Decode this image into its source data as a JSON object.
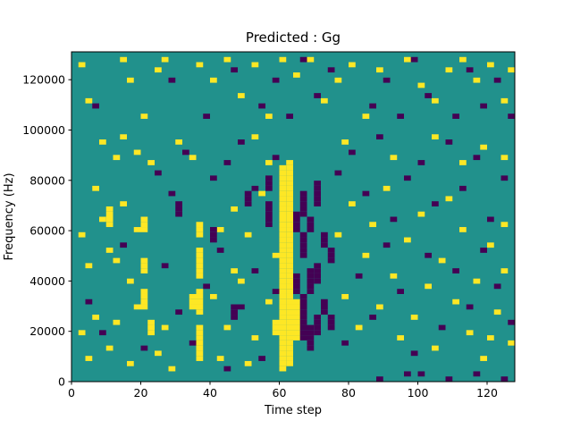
{
  "figure": {
    "title": "Predicted : Gg"
  },
  "chart_data": {
    "type": "heatmap",
    "title": "Predicted : Gg",
    "xlabel": "Time step",
    "ylabel": "Frequency (Hz)",
    "xlim": [
      0,
      128
    ],
    "ylim": [
      0,
      131072
    ],
    "xticks": [
      0,
      20,
      40,
      60,
      80,
      100,
      120
    ],
    "yticks": [
      0,
      20000,
      40000,
      60000,
      80000,
      100000,
      120000
    ],
    "cell_size": {
      "time": 2,
      "freq": 2048
    },
    "colors": {
      "background": "#21918c",
      "yellow": "#fde725",
      "purple": "#440154",
      "frame": "#000000"
    },
    "legend": "none",
    "grid": false,
    "yellow_runs": [
      [
        60,
        4096,
        83968
      ],
      [
        62,
        6144,
        86016
      ],
      [
        64,
        16384,
        30720
      ],
      [
        58,
        18432,
        22528
      ],
      [
        36,
        8192,
        20480
      ],
      [
        36,
        26624,
        34816
      ],
      [
        36,
        40960,
        51200
      ],
      [
        36,
        57344,
        61440
      ],
      [
        34,
        28672,
        32768
      ],
      [
        20,
        28672,
        34816
      ],
      [
        20,
        43008,
        47104
      ],
      [
        20,
        59392,
        63488
      ],
      [
        22,
        18432,
        22528
      ],
      [
        10,
        61440,
        67584
      ]
    ],
    "yellow_cells": [
      [
        2,
        124928
      ],
      [
        4,
        110592
      ],
      [
        14,
        126976
      ],
      [
        16,
        118784
      ],
      [
        20,
        104448
      ],
      [
        24,
        122880
      ],
      [
        26,
        126976
      ],
      [
        36,
        124928
      ],
      [
        40,
        118784
      ],
      [
        44,
        126976
      ],
      [
        48,
        112640
      ],
      [
        52,
        124928
      ],
      [
        56,
        104448
      ],
      [
        60,
        126976
      ],
      [
        64,
        120832
      ],
      [
        68,
        126976
      ],
      [
        72,
        110592
      ],
      [
        76,
        118784
      ],
      [
        80,
        124928
      ],
      [
        84,
        104448
      ],
      [
        88,
        122880
      ],
      [
        96,
        126976
      ],
      [
        100,
        116736
      ],
      [
        104,
        110592
      ],
      [
        108,
        122880
      ],
      [
        112,
        126976
      ],
      [
        116,
        118784
      ],
      [
        120,
        124928
      ],
      [
        124,
        110592
      ],
      [
        126,
        122880
      ],
      [
        8,
        94208
      ],
      [
        12,
        88064
      ],
      [
        14,
        96256
      ],
      [
        18,
        90112
      ],
      [
        22,
        86016
      ],
      [
        30,
        94208
      ],
      [
        34,
        88064
      ],
      [
        52,
        96256
      ],
      [
        56,
        86016
      ],
      [
        78,
        94208
      ],
      [
        92,
        88064
      ],
      [
        104,
        96256
      ],
      [
        112,
        86016
      ],
      [
        118,
        92160
      ],
      [
        124,
        88064
      ],
      [
        2,
        18432
      ],
      [
        4,
        8192
      ],
      [
        6,
        24576
      ],
      [
        10,
        12288
      ],
      [
        12,
        22528
      ],
      [
        16,
        6144
      ],
      [
        18,
        28672
      ],
      [
        24,
        10240
      ],
      [
        26,
        20480
      ],
      [
        28,
        4096
      ],
      [
        2,
        57344
      ],
      [
        4,
        45056
      ],
      [
        8,
        63488
      ],
      [
        10,
        51200
      ],
      [
        14,
        69632
      ],
      [
        16,
        38912
      ],
      [
        18,
        59392
      ],
      [
        6,
        75776
      ],
      [
        12,
        47104
      ],
      [
        40,
        32768
      ],
      [
        42,
        59392
      ],
      [
        44,
        20480
      ],
      [
        46,
        67584
      ],
      [
        48,
        38912
      ],
      [
        50,
        57344
      ],
      [
        52,
        16384
      ],
      [
        54,
        73728
      ],
      [
        56,
        30720
      ],
      [
        58,
        49152
      ],
      [
        42,
        8192
      ],
      [
        50,
        6144
      ],
      [
        46,
        43008
      ],
      [
        76,
        57344
      ],
      [
        78,
        32768
      ],
      [
        80,
        69632
      ],
      [
        82,
        20480
      ],
      [
        84,
        49152
      ],
      [
        86,
        61440
      ],
      [
        88,
        28672
      ],
      [
        90,
        75776
      ],
      [
        92,
        40960
      ],
      [
        94,
        16384
      ],
      [
        96,
        55296
      ],
      [
        98,
        24576
      ],
      [
        100,
        65536
      ],
      [
        102,
        36864
      ],
      [
        104,
        12288
      ],
      [
        106,
        47104
      ],
      [
        108,
        71680
      ],
      [
        110,
        30720
      ],
      [
        112,
        59392
      ],
      [
        114,
        18432
      ],
      [
        116,
        38912
      ],
      [
        118,
        8192
      ],
      [
        120,
        53248
      ],
      [
        122,
        26624
      ],
      [
        124,
        43008
      ],
      [
        126,
        14336
      ],
      [
        120,
        16384
      ],
      [
        124,
        61440
      ]
    ],
    "purple_runs": [
      [
        66,
        16384,
        32768
      ],
      [
        66,
        49152,
        57344
      ],
      [
        66,
        65536,
        73728
      ],
      [
        68,
        12288,
        20480
      ],
      [
        68,
        34816,
        43008
      ],
      [
        68,
        59392,
        63488
      ],
      [
        70,
        18432,
        24576
      ],
      [
        70,
        38912,
        45056
      ],
      [
        70,
        69632,
        77824
      ],
      [
        72,
        26624,
        30720
      ],
      [
        72,
        53248,
        57344
      ],
      [
        64,
        34816,
        40960
      ],
      [
        64,
        59392,
        65536
      ],
      [
        74,
        20480,
        24576
      ],
      [
        74,
        47104,
        51200
      ],
      [
        56,
        61440,
        67584
      ],
      [
        56,
        75776,
        79872
      ],
      [
        46,
        24576,
        28672
      ],
      [
        50,
        69632,
        73728
      ],
      [
        40,
        55296,
        59392
      ],
      [
        30,
        65536,
        69632
      ]
    ],
    "purple_cells": [
      [
        6,
        108544
      ],
      [
        28,
        118784
      ],
      [
        38,
        104448
      ],
      [
        46,
        122880
      ],
      [
        54,
        108544
      ],
      [
        58,
        118784
      ],
      [
        62,
        104448
      ],
      [
        66,
        126976
      ],
      [
        70,
        112640
      ],
      [
        74,
        122880
      ],
      [
        86,
        108544
      ],
      [
        90,
        118784
      ],
      [
        94,
        104448
      ],
      [
        98,
        126976
      ],
      [
        102,
        112640
      ],
      [
        110,
        104448
      ],
      [
        114,
        122880
      ],
      [
        118,
        108544
      ],
      [
        122,
        118784
      ],
      [
        126,
        104448
      ],
      [
        24,
        81920
      ],
      [
        28,
        73728
      ],
      [
        32,
        90112
      ],
      [
        40,
        79872
      ],
      [
        44,
        86016
      ],
      [
        48,
        94208
      ],
      [
        52,
        75776
      ],
      [
        56,
        69632
      ],
      [
        58,
        88064
      ],
      [
        76,
        81920
      ],
      [
        80,
        90112
      ],
      [
        84,
        73728
      ],
      [
        88,
        96256
      ],
      [
        92,
        63488
      ],
      [
        96,
        79872
      ],
      [
        100,
        86016
      ],
      [
        104,
        69632
      ],
      [
        108,
        94208
      ],
      [
        112,
        75776
      ],
      [
        116,
        88064
      ],
      [
        120,
        63488
      ],
      [
        124,
        79872
      ],
      [
        4,
        30720
      ],
      [
        8,
        18432
      ],
      [
        14,
        53248
      ],
      [
        20,
        12288
      ],
      [
        26,
        45056
      ],
      [
        30,
        26624
      ],
      [
        34,
        14336
      ],
      [
        38,
        36864
      ],
      [
        42,
        51200
      ],
      [
        44,
        4096
      ],
      [
        48,
        28672
      ],
      [
        52,
        43008
      ],
      [
        54,
        8192
      ],
      [
        58,
        34816
      ],
      [
        78,
        14336
      ],
      [
        82,
        40960
      ],
      [
        86,
        24576
      ],
      [
        90,
        53248
      ],
      [
        94,
        34816
      ],
      [
        98,
        10240
      ],
      [
        102,
        49152
      ],
      [
        106,
        20480
      ],
      [
        110,
        43008
      ],
      [
        114,
        28672
      ],
      [
        118,
        51200
      ],
      [
        122,
        36864
      ],
      [
        126,
        22528
      ],
      [
        100,
        2048
      ],
      [
        108,
        0
      ],
      [
        116,
        2048
      ],
      [
        124,
        0
      ],
      [
        88,
        0
      ],
      [
        96,
        2048
      ]
    ]
  }
}
